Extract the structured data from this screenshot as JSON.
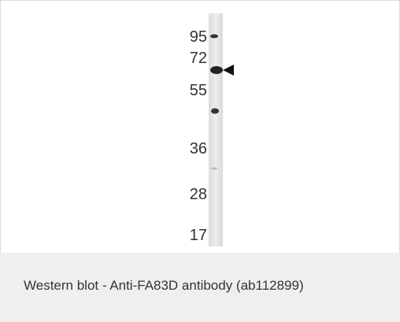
{
  "figure": {
    "markers": [
      95,
      72,
      55,
      36,
      28,
      17
    ],
    "caption": "Western blot - Anti-FA83D antibody (ab112899)"
  }
}
